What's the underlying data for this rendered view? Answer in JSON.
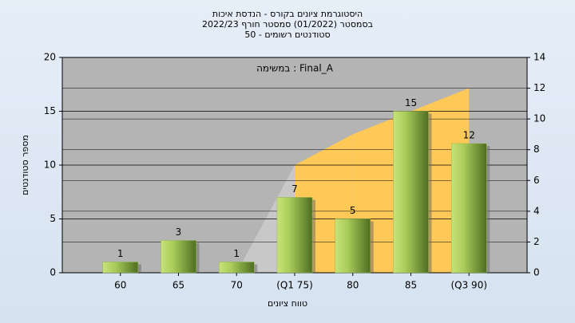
{
  "chart_data": {
    "type": "bar",
    "title": [
      "היסטוגרמת ציונים בקורס - הנדסת איכות",
      "בסמסטר  (01/2022)  סמסטר חורף 2022/23",
      "סטודנטים רשומים - 50"
    ],
    "annotation": "במשימה : Final_A",
    "x_label": "טווח ציונים",
    "y_label": "מספר סטודנטים",
    "categories": [
      "60",
      "65",
      "70",
      "(Q1 75)",
      "80",
      "85",
      "(Q3 90)"
    ],
    "values": [
      1,
      3,
      1,
      7,
      5,
      15,
      12
    ],
    "color": "#8fb34a",
    "area": {
      "values": [
        null,
        null,
        0,
        7,
        9,
        10.5,
        12
      ],
      "axis": "y2",
      "colors": [
        "#c8c8c8",
        "#c8c8c8",
        "#c8c8c8",
        "#ffc957",
        "#ffc957",
        "#ffc957",
        "#ffc957"
      ]
    },
    "ylim": [
      0,
      20
    ],
    "yticks": [
      0,
      5,
      10,
      15,
      20
    ],
    "y2lim": [
      0,
      14
    ],
    "y2ticks": [
      0,
      2,
      4,
      6,
      8,
      10,
      12,
      14
    ],
    "grid": true
  }
}
